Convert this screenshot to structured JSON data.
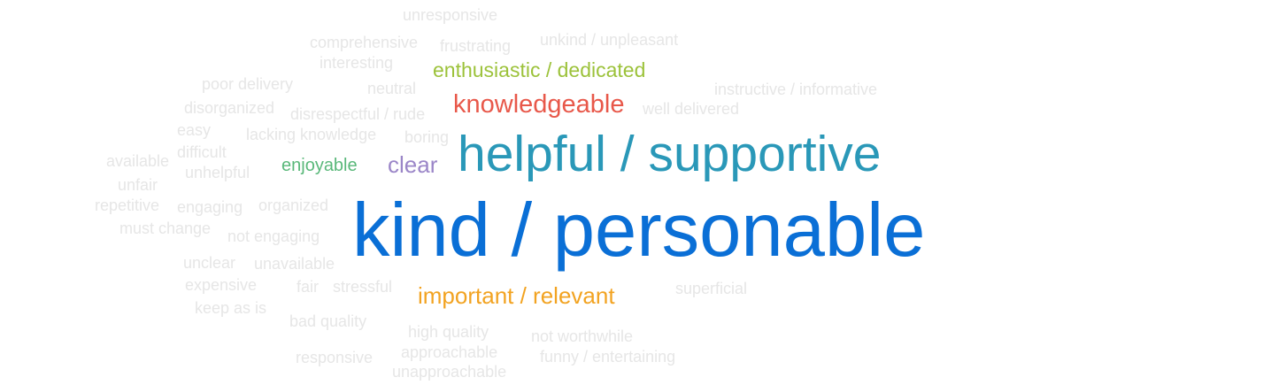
{
  "word_cloud": {
    "words": [
      {
        "text": "kind / personable",
        "color": "#0a6fd6"
      },
      {
        "text": "helpful / supportive",
        "color": "#2a98b8"
      },
      {
        "text": "knowledgeable",
        "color": "#e8584a"
      },
      {
        "text": "enthusiastic / dedicated",
        "color": "#9cc23a"
      },
      {
        "text": "important / relevant",
        "color": "#f2a321"
      },
      {
        "text": "clear",
        "color": "#9b86c8"
      },
      {
        "text": "enjoyable",
        "color": "#5ab87a"
      },
      {
        "text": "unresponsive",
        "color": "#e6e6e6"
      },
      {
        "text": "comprehensive",
        "color": "#e6e6e6"
      },
      {
        "text": "frustrating",
        "color": "#e6e6e6"
      },
      {
        "text": "unkind / unpleasant",
        "color": "#e6e6e6"
      },
      {
        "text": "interesting",
        "color": "#e6e6e6"
      },
      {
        "text": "poor delivery",
        "color": "#e6e6e6"
      },
      {
        "text": "neutral",
        "color": "#e6e6e6"
      },
      {
        "text": "instructive / informative",
        "color": "#e6e6e6"
      },
      {
        "text": "disorganized",
        "color": "#e6e6e6"
      },
      {
        "text": "disrespectful / rude",
        "color": "#e6e6e6"
      },
      {
        "text": "well delivered",
        "color": "#e6e6e6"
      },
      {
        "text": "easy",
        "color": "#e6e6e6"
      },
      {
        "text": "lacking knowledge",
        "color": "#e6e6e6"
      },
      {
        "text": "boring",
        "color": "#e6e6e6"
      },
      {
        "text": "difficult",
        "color": "#e6e6e6"
      },
      {
        "text": "available",
        "color": "#e6e6e6"
      },
      {
        "text": "unhelpful",
        "color": "#e6e6e6"
      },
      {
        "text": "unfair",
        "color": "#e6e6e6"
      },
      {
        "text": "repetitive",
        "color": "#e6e6e6"
      },
      {
        "text": "engaging",
        "color": "#e6e6e6"
      },
      {
        "text": "organized",
        "color": "#e6e6e6"
      },
      {
        "text": "must change",
        "color": "#e6e6e6"
      },
      {
        "text": "not engaging",
        "color": "#e6e6e6"
      },
      {
        "text": "unclear",
        "color": "#e6e6e6"
      },
      {
        "text": "unavailable",
        "color": "#e6e6e6"
      },
      {
        "text": "expensive",
        "color": "#e6e6e6"
      },
      {
        "text": "fair",
        "color": "#e6e6e6"
      },
      {
        "text": "stressful",
        "color": "#e6e6e6"
      },
      {
        "text": "superficial",
        "color": "#e6e6e6"
      },
      {
        "text": "keep as is",
        "color": "#e6e6e6"
      },
      {
        "text": "bad quality",
        "color": "#e6e6e6"
      },
      {
        "text": "high quality",
        "color": "#e6e6e6"
      },
      {
        "text": "not worthwhile",
        "color": "#e6e6e6"
      },
      {
        "text": "approachable",
        "color": "#e6e6e6"
      },
      {
        "text": "responsive",
        "color": "#e6e6e6"
      },
      {
        "text": "funny / entertaining",
        "color": "#e6e6e6"
      },
      {
        "text": "unapproachable",
        "color": "#e6e6e6"
      }
    ]
  }
}
